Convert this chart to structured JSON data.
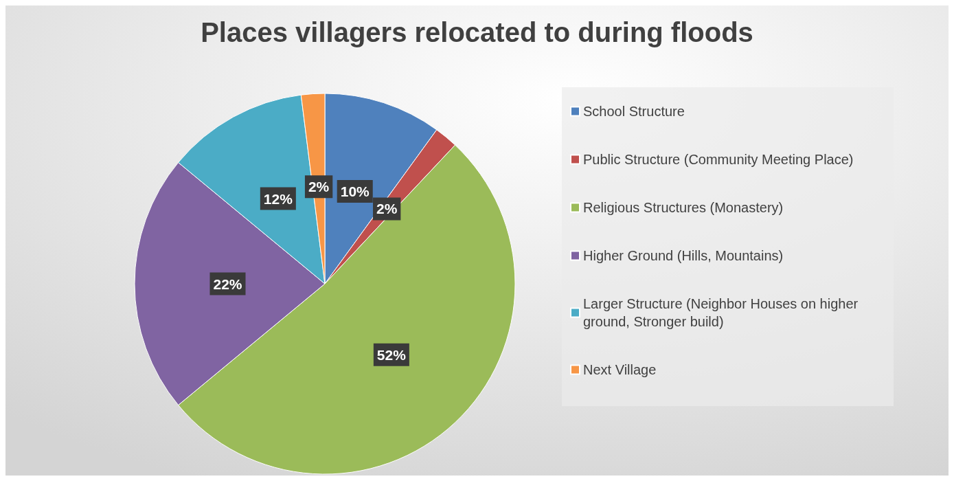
{
  "chart_data": {
    "type": "pie",
    "title": "Places villagers relocated to during floods",
    "categories": [
      "School Structure",
      "Public Structure (Community Meeting Place)",
      "Religious Structures (Monastery)",
      "Higher Ground (Hills, Mountains)",
      "Larger Structure (Neighbor Houses on higher ground, Stronger build)",
      "Next Village"
    ],
    "values": [
      10,
      2,
      52,
      22,
      12,
      2
    ],
    "colors": [
      "#4f81bd",
      "#c0504d",
      "#9bbb59",
      "#8064a2",
      "#4bacc6",
      "#f79646"
    ],
    "value_labels": [
      "10%",
      "2%",
      "52%",
      "22%",
      "12%",
      "2%"
    ],
    "legend": "right"
  }
}
